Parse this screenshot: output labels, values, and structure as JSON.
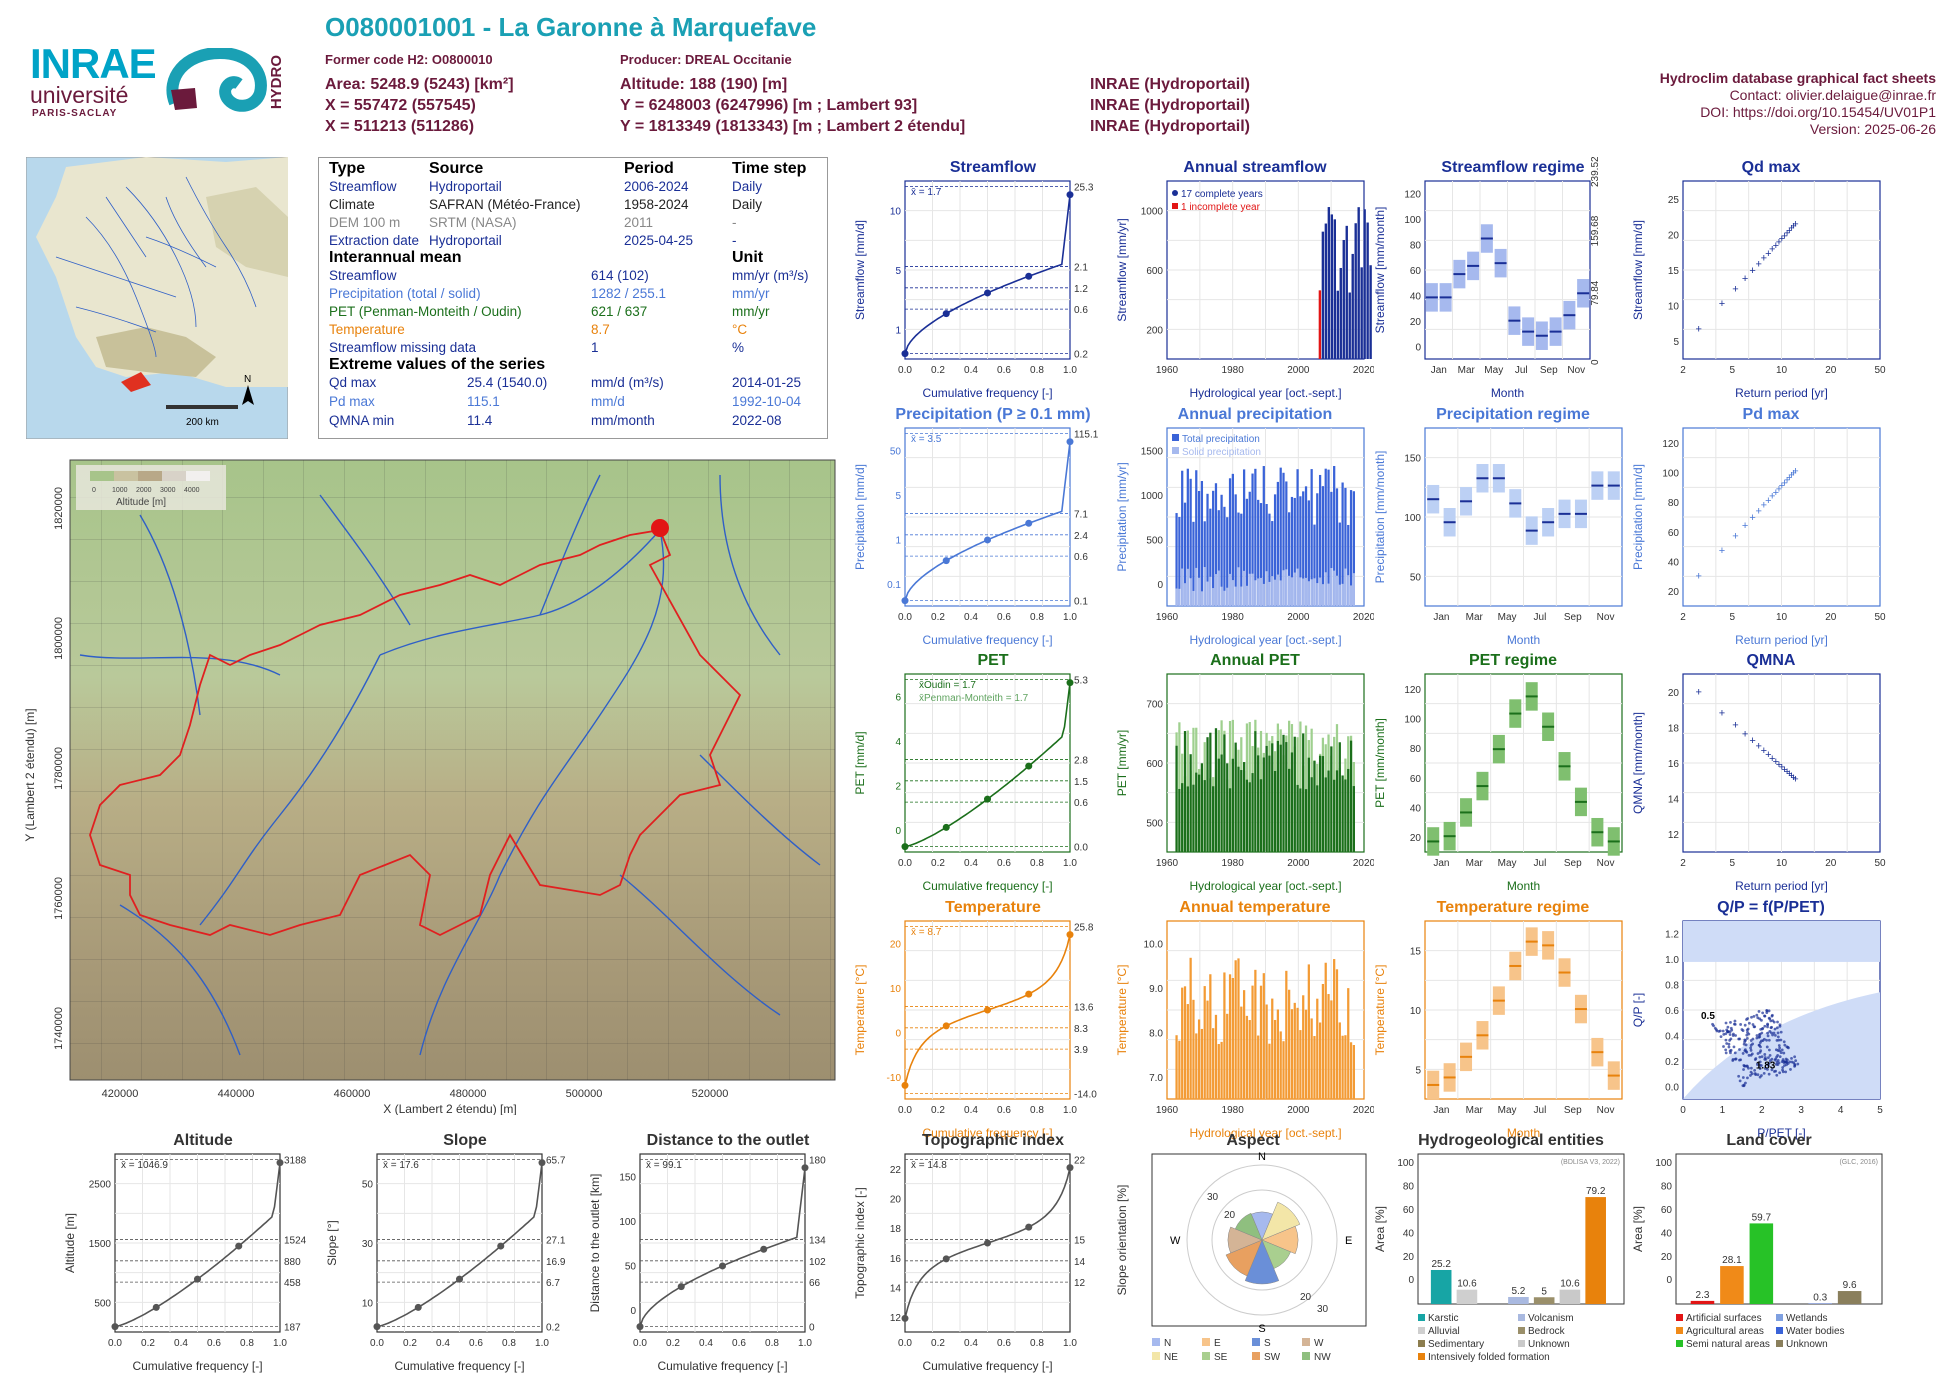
{
  "header": {
    "title": "O080001001 - La Garonne à Marquefave",
    "former_code": "Former code H2: O0800010",
    "producer": "Producer: DREAL Occitanie",
    "area": "Area: 5248.9 (5243) [km²]",
    "altitude": "Altitude: 188 (190) [m]",
    "x1": "X = 557472 (557545)",
    "y1": "Y = 6248003 (6247996) [m ; Lambert 93]",
    "x2": "X = 511213 (511286)",
    "y2": "Y = 1813349 (1813343) [m ; Lambert 2 étendu]",
    "inrae1": "INRAE (Hydroportail)",
    "inrae2": "INRAE (Hydroportail)",
    "inrae3": "INRAE (Hydroportail)"
  },
  "logos": {
    "inrae": "INRAE",
    "univ": "université",
    "ps": "PARIS-SACLAY",
    "hydro": "HYDRO"
  },
  "factsheet": {
    "name": "Hydroclim database graphical fact sheets",
    "contact": "Contact: olivier.delaigue@inrae.fr",
    "doi": "DOI: https://doi.org/10.15454/UV01P1",
    "version": "Version: 2025-06-26"
  },
  "info": {
    "h_type": "Type",
    "h_source": "Source",
    "h_period": "Period",
    "h_step": "Time step",
    "r1": [
      "Streamflow",
      "Hydroportail",
      "2006-2024",
      "Daily"
    ],
    "r2": [
      "Climate",
      "SAFRAN (Météo-France)",
      "1958-2024",
      "Daily"
    ],
    "r3": [
      "DEM 100 m",
      "SRTM (NASA)",
      "2011",
      "-"
    ],
    "r4": [
      "Extraction date",
      "Hydroportail",
      "2025-04-25",
      "-"
    ],
    "h_mean": "Interannual mean",
    "h_unit": "Unit",
    "m1": [
      "Streamflow",
      "614 (102)",
      "mm/yr (m³/s)"
    ],
    "m2": [
      "Precipitation (total / solid)",
      "1282 / 255.1",
      "mm/yr"
    ],
    "m3": [
      "PET (Penman-Monteith / Oudin)",
      "621 / 637",
      "mm/yr"
    ],
    "m4": [
      "Temperature",
      "8.7",
      "°C"
    ],
    "m5": [
      "Streamflow missing data",
      "1",
      "%"
    ],
    "h_ext": "Extreme values of the series",
    "e1": [
      "Qd max",
      "25.4 (1540.0)",
      "mm/d (m³/s)",
      "2014-01-25"
    ],
    "e2": [
      "Pd max",
      "115.1",
      "mm/d",
      "1992-10-04"
    ],
    "e3": [
      "QMNA min",
      "11.4",
      "mm/month",
      "2022-08"
    ]
  },
  "map": {
    "ylabel": "Y (Lambert 2 étendu) [m]",
    "xlabel": "X (Lambert 2 étendu) [m]",
    "yticks": [
      "1820000",
      "1800000",
      "1780000",
      "1760000",
      "1740000"
    ],
    "xticks": [
      "420000",
      "440000",
      "460000",
      "480000",
      "500000",
      "520000"
    ],
    "legend_title": "Altitude [m]",
    "legend_ticks": [
      "0",
      "1000",
      "2000",
      "3000",
      "4000"
    ],
    "scale": "200 km",
    "north": "N"
  },
  "charts": {
    "streamflow": {
      "title": "Streamflow",
      "ylabel": "Streamflow [mm/d]",
      "xlabel": "Cumulative frequency [-]",
      "mean": "x̄ = 1.7",
      "right_ticks": [
        "25.3",
        "2.1",
        "1.2",
        "0.6",
        "0.2"
      ],
      "left_ticks": [
        "10",
        "5",
        "1"
      ],
      "xticks": [
        "0.0",
        "0.2",
        "0.4",
        "0.6",
        "0.8",
        "1.0"
      ]
    },
    "annual_streamflow": {
      "title": "Annual streamflow",
      "ylabel": "Streamflow [mm/yr]",
      "xlabel": "Hydrological year [oct.-sept.]",
      "legend1": "17 complete years",
      "legend2": "1 incomplete year",
      "yticks": [
        "1000",
        "600",
        "200"
      ],
      "xticks": [
        "1960",
        "1980",
        "2000",
        "2020"
      ]
    },
    "streamflow_regime": {
      "title": "Streamflow regime",
      "ylabel": "Streamflow [mm/month]",
      "xlabel": "Month",
      "yticks": [
        "120",
        "100",
        "80",
        "60",
        "40",
        "20",
        "0"
      ],
      "right_ticks": [
        "239.52",
        "159.68",
        "79.84",
        "0"
      ],
      "ylabel_right": "Streamflow [m³/s]",
      "months": [
        "Jan",
        "Mar",
        "May",
        "Jul",
        "Sep",
        "Nov"
      ]
    },
    "qd_max": {
      "title": "Qd max",
      "ylabel": "Streamflow [mm/d]",
      "xlabel": "Return period [yr]",
      "yticks": [
        "25",
        "20",
        "15",
        "10",
        "5"
      ],
      "xticks": [
        "2",
        "5",
        "10",
        "20",
        "50"
      ]
    },
    "precipitation": {
      "title": "Precipitation (P ≥ 0.1 mm)",
      "ylabel": "Precipitation [mm/d]",
      "xlabel": "Cumulative frequency [-]",
      "mean": "x̄ = 3.5",
      "right_ticks": [
        "115.1",
        "7.1",
        "2.4",
        "0.6",
        "0.1"
      ],
      "left_ticks": [
        "50",
        "5",
        "1",
        "0.1"
      ]
    },
    "annual_precipitation": {
      "title": "Annual precipitation",
      "ylabel": "Precipitation [mm/yr]",
      "xlabel": "Hydrological year [oct.-sept.]",
      "legend1": "Total precipitation",
      "legend2": "Solid precipitation",
      "yticks": [
        "1500",
        "1000",
        "500",
        "0"
      ]
    },
    "precipitation_regime": {
      "title": "Precipitation regime",
      "ylabel": "Precipitation [mm/month]",
      "xlabel": "Month",
      "yticks": [
        "150",
        "100",
        "50"
      ]
    },
    "pd_max": {
      "title": "Pd max",
      "ylabel": "Precipitation [mm/d]",
      "xlabel": "Return period [yr]",
      "yticks": [
        "120",
        "100",
        "80",
        "60",
        "40",
        "20"
      ]
    },
    "pet": {
      "title": "PET",
      "ylabel": "PET [mm/d]",
      "xlabel": "Cumulative frequency [-]",
      "legend1": "x̄Oudin = 1.7",
      "legend2": "x̄Penman-Monteith = 1.7",
      "right_ticks": [
        "5.3",
        "2.8",
        "1.5",
        "0.6",
        "0.0"
      ],
      "left_ticks": [
        "6",
        "4",
        "2",
        "0"
      ]
    },
    "annual_pet": {
      "title": "Annual PET",
      "ylabel": "PET [mm/yr]",
      "xlabel": "Hydrological year [oct.-sept.]",
      "yticks": [
        "700",
        "600",
        "500"
      ]
    },
    "pet_regime": {
      "title": "PET regime",
      "ylabel": "PET [mm/month]",
      "xlabel": "Month",
      "yticks": [
        "120",
        "100",
        "80",
        "60",
        "40",
        "20"
      ]
    },
    "qmna": {
      "title": "QMNA",
      "ylabel": "QMNA [mm/month]",
      "xlabel": "Return period [yr]",
      "yticks": [
        "20",
        "18",
        "16",
        "14",
        "12"
      ]
    },
    "temperature": {
      "title": "Temperature",
      "ylabel": "Temperature [°C]",
      "xlabel": "Cumulative frequency [-]",
      "mean": "x̄ = 8.7",
      "right_ticks": [
        "25.8",
        "13.6",
        "8.3",
        "3.9",
        "-14.0"
      ],
      "left_ticks": [
        "20",
        "10",
        "0",
        "-10"
      ]
    },
    "annual_temperature": {
      "title": "Annual temperature",
      "ylabel": "Temperature [°C]",
      "xlabel": "Hydrological year [oct.-sept.]",
      "yticks": [
        "10.0",
        "9.0",
        "8.0",
        "7.0"
      ]
    },
    "temperature_regime": {
      "title": "Temperature regime",
      "ylabel": "Temperature [°C]",
      "xlabel": "Month",
      "yticks": [
        "15",
        "10",
        "5"
      ]
    },
    "qp": {
      "title": "Q/P = f(P/PET)",
      "ylabel": "Q/P [-]",
      "xlabel": "P/PET [-]",
      "ann1": "0.5",
      "ann2": "1.83",
      "yticks": [
        "1.2",
        "1.0",
        "0.8",
        "0.6",
        "0.4",
        "0.2",
        "0.0"
      ],
      "xticks": [
        "0",
        "1",
        "2",
        "3",
        "4",
        "5"
      ]
    },
    "altitude": {
      "title": "Altitude",
      "ylabel": "Altitude [m]",
      "xlabel": "Cumulative frequency [-]",
      "mean": "x̄ = 1046.9",
      "right_ticks": [
        "3188",
        "1524",
        "880",
        "458",
        "187"
      ],
      "left_ticks": [
        "2500",
        "1500",
        "500"
      ]
    },
    "slope": {
      "title": "Slope",
      "ylabel": "Slope [°]",
      "xlabel": "Cumulative frequency [-]",
      "mean": "x̄ = 17.6",
      "right_ticks": [
        "65.7",
        "27.1",
        "16.9",
        "6.7",
        "0.2"
      ],
      "left_ticks": [
        "50",
        "30",
        "10"
      ]
    },
    "distance": {
      "title": "Distance to the outlet",
      "ylabel": "Distance to the outlet [km]",
      "xlabel": "Cumulative frequency [-]",
      "mean": "x̄ = 99.1",
      "right_ticks": [
        "180",
        "134",
        "102",
        "66",
        "0"
      ],
      "left_ticks": [
        "150",
        "100",
        "50",
        "0"
      ]
    },
    "topo": {
      "title": "Topographic index",
      "ylabel": "Topographic index [-]",
      "xlabel": "Cumulative frequency [-]",
      "mean": "x̄ = 14.8",
      "right_ticks": [
        "22",
        "15",
        "14",
        "12"
      ],
      "left_ticks": [
        "22",
        "20",
        "18",
        "16",
        "14",
        "12"
      ]
    },
    "aspect": {
      "title": "Aspect",
      "ylabel": "Slope orientation [%]",
      "dirs": [
        "N",
        "E",
        "S",
        "W"
      ],
      "rings": [
        "30",
        "20",
        "20",
        "30"
      ],
      "legend": [
        "N",
        "E",
        "S",
        "W",
        "NE",
        "SE",
        "SW",
        "NW"
      ]
    },
    "hydrogeo": {
      "title": "Hydrogeological entities",
      "ylabel": "Area [%]",
      "source": "(BDLISA V3, 2022)",
      "values_txt": [
        "25.2",
        "10.6",
        "5.2",
        "5",
        "79.2",
        "10.6"
      ],
      "legend": [
        "Karstic",
        "Volcanism",
        "Alluvial",
        "Bedrock",
        "Sedimentary",
        "Unknown",
        "Intensively folded formation"
      ],
      "yticks": [
        "100",
        "80",
        "60",
        "40",
        "20",
        "0"
      ]
    },
    "landcover": {
      "title": "Land cover",
      "ylabel": "Area [%]",
      "source": "(GLC, 2016)",
      "values_txt": [
        "2.3",
        "28.1",
        "59.7",
        "0.3",
        "9.6"
      ],
      "legend": [
        "Artificial surfaces",
        "Wetlands",
        "Agricultural areas",
        "Water bodies",
        "Semi natural areas",
        "Unknown"
      ],
      "yticks": [
        "100",
        "80",
        "60",
        "40",
        "20",
        "0"
      ]
    }
  },
  "chart_data": [
    {
      "type": "bar",
      "title": "Streamflow regime",
      "categories": [
        "Jan",
        "Feb",
        "Mar",
        "Apr",
        "May",
        "Jun",
        "Jul",
        "Aug",
        "Sep",
        "Oct",
        "Nov",
        "Dec"
      ],
      "values": [
        45,
        45,
        62,
        68,
        88,
        70,
        28,
        20,
        17,
        20,
        32,
        48
      ]
    },
    {
      "type": "bar",
      "title": "Precipitation regime",
      "categories": [
        "Jan",
        "Feb",
        "Mar",
        "Apr",
        "May",
        "Jun",
        "Jul",
        "Aug",
        "Sep",
        "Oct",
        "Nov",
        "Dec"
      ],
      "values": [
        102,
        80,
        100,
        122,
        122,
        98,
        72,
        80,
        88,
        88,
        115,
        115
      ]
    },
    {
      "type": "bar",
      "title": "Temperature regime",
      "categories": [
        "Jan",
        "Feb",
        "Mar",
        "Apr",
        "May",
        "Jun",
        "Jul",
        "Aug",
        "Sep",
        "Oct",
        "Nov",
        "Dec"
      ],
      "values": [
        1.5,
        2.3,
        4.5,
        6.8,
        10.5,
        14.2,
        16.8,
        16.4,
        13.5,
        9.6,
        5.0,
        2.5
      ]
    },
    {
      "type": "bar",
      "title": "PET regime",
      "categories": [
        "Jan",
        "Feb",
        "Mar",
        "Apr",
        "May",
        "Jun",
        "Jul",
        "Aug",
        "Sep",
        "Oct",
        "Nov",
        "Dec"
      ],
      "values": [
        8,
        12,
        30,
        50,
        78,
        105,
        118,
        95,
        65,
        38,
        15,
        8
      ]
    },
    {
      "type": "bar",
      "title": "Hydrogeological entities",
      "categories": [
        "Karstic",
        "Alluvial",
        "Sedimentary",
        "Volcanism",
        "Bedrock",
        "Unknown",
        "Intensively folded formation"
      ],
      "values": [
        25.2,
        10.6,
        0,
        5.2,
        5,
        10.6,
        79.2
      ]
    },
    {
      "type": "bar",
      "title": "Land cover",
      "categories": [
        "Artificial surfaces",
        "Agricultural areas",
        "Semi natural areas",
        "Wetlands",
        "Water bodies",
        "Unknown"
      ],
      "values": [
        2.3,
        28.1,
        59.7,
        0,
        0.3,
        9.6
      ]
    }
  ]
}
